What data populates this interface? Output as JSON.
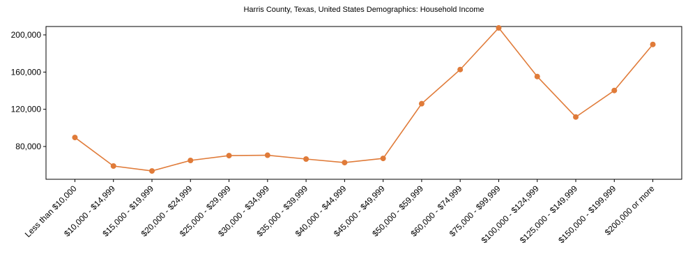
{
  "chart_data": {
    "type": "line",
    "title": "Harris County, Texas, United States Demographics: Household Income",
    "categories": [
      "Less than $10,000",
      "$10,000 - $14,999",
      "$15,000 - $19,999",
      "$20,000 - $24,999",
      "$25,000 - $29,999",
      "$30,000 - $34,999",
      "$35,000 - $39,999",
      "$40,000 - $44,999",
      "$45,000 - $49,999",
      "$50,000 - $59,999",
      "$60,000 - $74,999",
      "$75,000 - $99,999",
      "$100,000 - $124,999",
      "$125,000 - $149,999",
      "$150,000 - $199,999",
      "$200,000 or more"
    ],
    "values": [
      89700,
      59000,
      53700,
      65000,
      70200,
      70600,
      66500,
      62700,
      67200,
      126000,
      162700,
      207500,
      155200,
      111700,
      140200,
      189700
    ],
    "color": "#e07b39",
    "ylim": [
      44750,
      209000
    ],
    "yticks": [
      {
        "value": 80000,
        "label": "80,000"
      },
      {
        "value": 120000,
        "label": "120,000"
      },
      {
        "value": 160000,
        "label": "160,000"
      },
      {
        "value": 200000,
        "label": "200,000"
      }
    ],
    "grid": false
  }
}
